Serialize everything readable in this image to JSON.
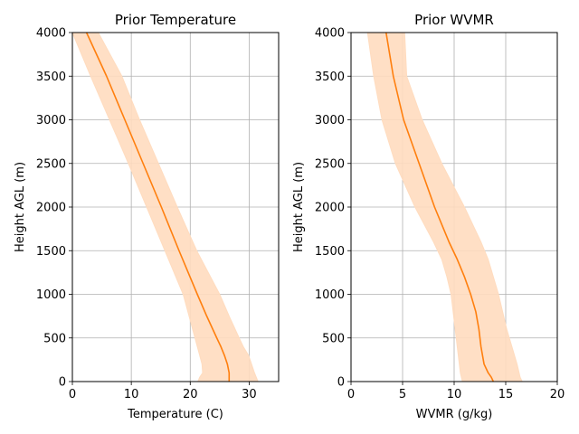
{
  "chart_data": [
    {
      "type": "line",
      "title": "Prior Temperature",
      "xlabel": "Temperature (C)",
      "ylabel": "Height AGL (m)",
      "xlim": [
        0,
        35
      ],
      "ylim": [
        0,
        4000
      ],
      "xticks": [
        0,
        10,
        20,
        30
      ],
      "yticks": [
        0,
        500,
        1000,
        1500,
        2000,
        2500,
        3000,
        3500,
        4000
      ],
      "grid": true,
      "line_color": "#ff7f0e",
      "band_color": "#ffdcbf",
      "series": [
        {
          "y": [
            0,
            50,
            100,
            200,
            300,
            400,
            500,
            750,
            1000,
            1500,
            2000,
            2500,
            3000,
            3500,
            4000
          ],
          "mean": [
            26.6,
            26.6,
            26.6,
            26.3,
            25.8,
            25.2,
            24.5,
            22.8,
            21.2,
            18.1,
            15.1,
            12.0,
            8.9,
            5.8,
            2.4
          ],
          "lower": [
            21.3,
            21.6,
            22.1,
            22.0,
            21.6,
            21.2,
            20.8,
            19.8,
            18.8,
            15.7,
            12.6,
            9.5,
            6.3,
            3.1,
            0.0
          ],
          "upper": [
            31.5,
            31.2,
            30.9,
            30.4,
            29.9,
            29.0,
            28.3,
            26.6,
            25.0,
            21.1,
            17.8,
            14.6,
            11.4,
            8.4,
            4.4
          ]
        }
      ]
    },
    {
      "type": "line",
      "title": "Prior WVMR",
      "xlabel": "WVMR (g/kg)",
      "ylabel": "Height AGL (m)",
      "xlim": [
        0,
        20
      ],
      "ylim": [
        0,
        4000
      ],
      "xticks": [
        0,
        5,
        10,
        15,
        20
      ],
      "yticks": [
        0,
        500,
        1000,
        1500,
        2000,
        2500,
        3000,
        3500,
        4000
      ],
      "grid": true,
      "line_color": "#ff7f0e",
      "band_color": "#ffdcbf",
      "series": [
        {
          "y": [
            0,
            50,
            100,
            200,
            400,
            600,
            800,
            1000,
            1200,
            1400,
            1600,
            2000,
            2500,
            3000,
            3500,
            4000
          ],
          "mean": [
            13.8,
            13.6,
            13.3,
            12.9,
            12.6,
            12.4,
            12.1,
            11.6,
            11.0,
            10.3,
            9.5,
            8.1,
            6.6,
            5.1,
            4.1,
            3.4
          ],
          "lower": [
            10.8,
            10.7,
            10.6,
            10.5,
            10.3,
            10.1,
            9.9,
            9.7,
            9.3,
            8.8,
            8.0,
            6.2,
            4.3,
            3.0,
            2.2,
            1.6
          ],
          "upper": [
            16.6,
            16.4,
            16.3,
            16.1,
            15.6,
            15.1,
            14.7,
            14.3,
            13.8,
            13.3,
            12.6,
            11.0,
            8.8,
            6.9,
            5.4,
            5.2
          ]
        }
      ]
    }
  ]
}
